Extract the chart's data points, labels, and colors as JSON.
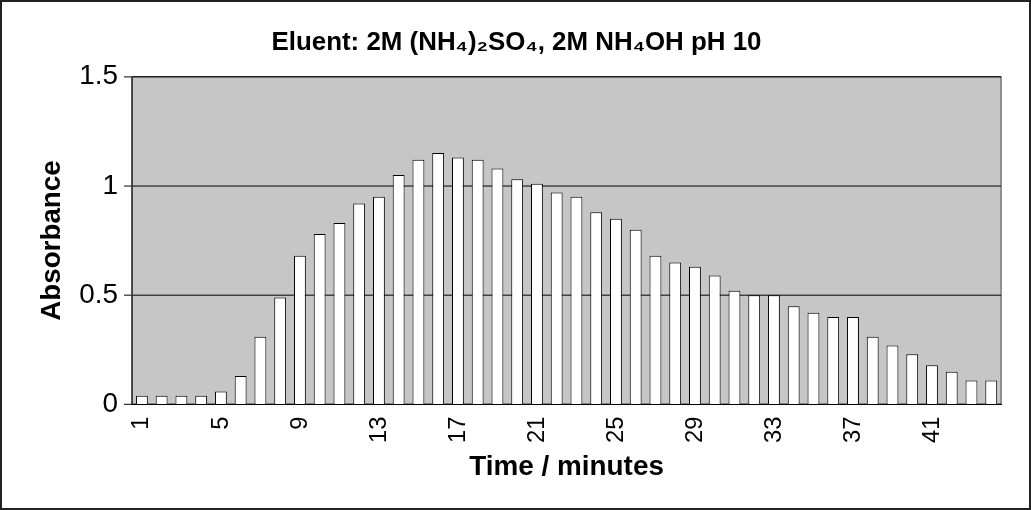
{
  "chart_data": {
    "type": "bar",
    "title": "Eluent: 2M (NH₄)₂SO₄, 2M NH₄OH pH 10",
    "xlabel": "Time / minutes",
    "ylabel": "Absorbance",
    "categories": [
      "1",
      null,
      null,
      null,
      "5",
      null,
      null,
      null,
      "9",
      null,
      null,
      null,
      "13",
      null,
      null,
      null,
      "17",
      null,
      null,
      null,
      "21",
      null,
      null,
      null,
      "25",
      null,
      null,
      null,
      "29",
      null,
      null,
      null,
      "33",
      null,
      null,
      null,
      "37",
      null,
      null,
      null,
      "41",
      null,
      null,
      null
    ],
    "values": [
      0.04,
      0.04,
      0.04,
      0.04,
      0.06,
      0.13,
      0.31,
      0.49,
      0.68,
      0.78,
      0.83,
      0.92,
      0.95,
      1.05,
      1.12,
      1.15,
      1.13,
      1.12,
      1.08,
      1.03,
      1.01,
      0.97,
      0.95,
      0.88,
      0.85,
      0.8,
      0.68,
      0.65,
      0.63,
      0.59,
      0.52,
      0.5,
      0.5,
      0.45,
      0.42,
      0.4,
      0.4,
      0.31,
      0.27,
      0.23,
      0.18,
      0.15,
      0.11,
      0.11
    ],
    "color": "#ffffff",
    "ylim": [
      0,
      1.5
    ],
    "yticks": [
      0,
      0.5,
      1,
      1.5
    ],
    "grid": "y",
    "legend": false
  }
}
